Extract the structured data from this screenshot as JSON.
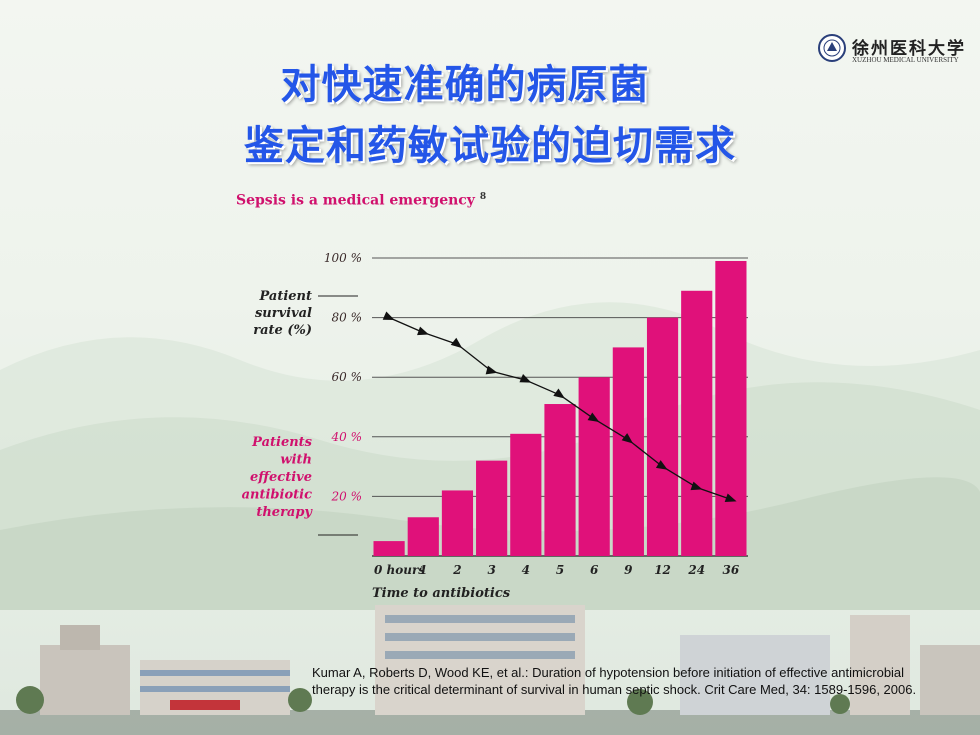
{
  "slide": {
    "title_line1": "对快速准确的病原菌",
    "title_line2": "鉴定和药敏试验的迫切需求",
    "logo_name_cn": "徐州医科大学",
    "logo_name_en": "XUZHOU MEDICAL UNIVERSITY",
    "citation": "Kumar A, Roberts D, Wood KE, et al.: Duration of hypotension before initiation of effective  antimicrobial therapy is the critical determinant of survival in human septic shock.  Crit Care Med, 34: 1589-1596, 2006."
  },
  "colors": {
    "title": "#2456e8",
    "bar": "#e0117a",
    "accent_text": "#d0106d",
    "line": "#111111"
  },
  "chart_data": {
    "type": "bar",
    "title": "Sepsis is a medical emergency",
    "title_superscript": "8",
    "xlabel": "Time to antibiotics",
    "categories": [
      "0 hours",
      "1",
      "2",
      "3",
      "4",
      "5",
      "6",
      "9",
      "12",
      "24",
      "36"
    ],
    "ylim": [
      0,
      100
    ],
    "y_ticks": [
      "100 %",
      "80 %",
      "60 %",
      "40 %",
      "20 %"
    ],
    "y_tick_values": [
      100,
      80,
      60,
      40,
      20
    ],
    "y_label_survival": [
      "Patient",
      "survival",
      "rate (%)"
    ],
    "y_label_therapy": [
      "Patients",
      "with",
      "effective",
      "antibiotic",
      "therapy"
    ],
    "series": [
      {
        "name": "Patients with effective antibiotic therapy",
        "type": "bar",
        "values": [
          5,
          13,
          22,
          32,
          41,
          51,
          60,
          70,
          80,
          89,
          99
        ]
      },
      {
        "name": "Patient survival rate (%)",
        "type": "line",
        "values": [
          80,
          75,
          71,
          62,
          59,
          54,
          46,
          39,
          30,
          23,
          19
        ]
      }
    ],
    "grid": true,
    "legend": "none"
  }
}
